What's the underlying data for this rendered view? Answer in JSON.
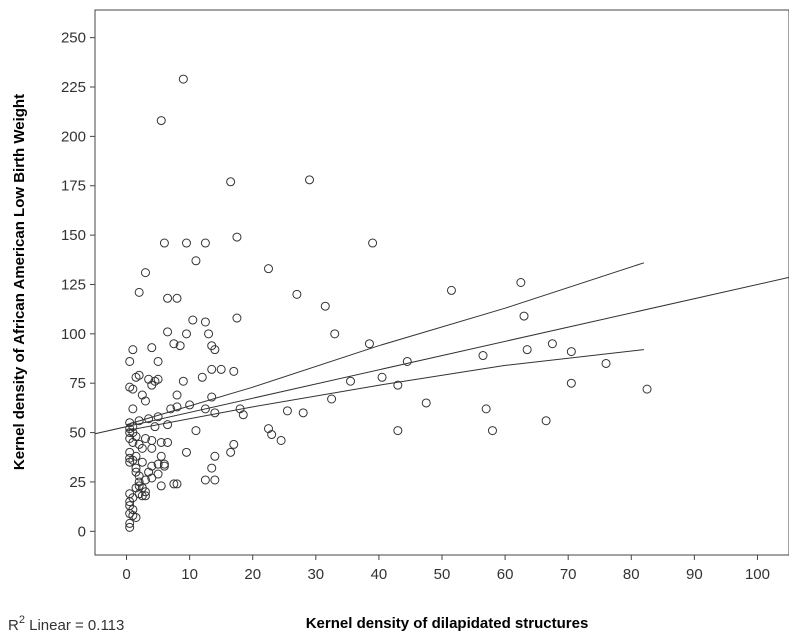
{
  "chart_data": {
    "type": "scatter",
    "xlabel": "Kernel density of dilapidated structures",
    "ylabel": "Kernel density of African American Low Birth Weight",
    "xlim": [
      -5,
      105
    ],
    "ylim": [
      -12,
      264
    ],
    "xticks": [
      0,
      10,
      20,
      30,
      40,
      50,
      60,
      70,
      80,
      90,
      100
    ],
    "yticks": [
      0,
      25,
      50,
      75,
      100,
      125,
      150,
      175,
      200,
      225,
      250
    ],
    "r2_prefix": "R",
    "r2_sup": "2",
    "r2_rest": " Linear = 0.113",
    "grid": false,
    "fit": {
      "intercept": 53,
      "slope": 0.72
    },
    "ci_upper": [
      [
        0,
        54
      ],
      [
        20,
        73
      ],
      [
        40,
        94
      ],
      [
        60,
        113
      ],
      [
        82,
        136
      ]
    ],
    "ci_lower": [
      [
        0,
        51
      ],
      [
        20,
        63
      ],
      [
        40,
        74
      ],
      [
        60,
        84
      ],
      [
        82,
        92
      ]
    ],
    "points": [
      [
        9,
        229
      ],
      [
        5.5,
        208
      ],
      [
        16.5,
        177
      ],
      [
        29,
        178
      ],
      [
        6,
        146
      ],
      [
        9.5,
        146
      ],
      [
        12.5,
        146
      ],
      [
        17.5,
        149
      ],
      [
        39,
        146
      ],
      [
        11,
        137
      ],
      [
        22.5,
        133
      ],
      [
        3,
        131
      ],
      [
        2,
        121
      ],
      [
        6.5,
        118
      ],
      [
        8,
        118
      ],
      [
        27,
        120
      ],
      [
        31.5,
        114
      ],
      [
        51.5,
        122
      ],
      [
        62.5,
        126
      ],
      [
        63,
        109
      ],
      [
        10.5,
        107
      ],
      [
        12.5,
        106
      ],
      [
        17.5,
        108
      ],
      [
        6.5,
        101
      ],
      [
        9.5,
        100
      ],
      [
        13,
        100
      ],
      [
        33,
        100
      ],
      [
        38.5,
        95
      ],
      [
        63.5,
        92
      ],
      [
        67.5,
        95
      ],
      [
        70.5,
        91
      ],
      [
        7.5,
        95
      ],
      [
        8.5,
        94
      ],
      [
        4,
        93
      ],
      [
        1,
        92
      ],
      [
        13.5,
        94
      ],
      [
        14,
        92
      ],
      [
        0.5,
        86
      ],
      [
        5,
        86
      ],
      [
        15,
        82
      ],
      [
        17,
        81
      ],
      [
        44.5,
        86
      ],
      [
        56.5,
        89
      ],
      [
        76,
        85
      ],
      [
        3.5,
        77
      ],
      [
        5,
        77
      ],
      [
        4.5,
        76
      ],
      [
        9,
        76
      ],
      [
        12,
        78
      ],
      [
        13.5,
        82
      ],
      [
        35.5,
        76
      ],
      [
        40.5,
        78
      ],
      [
        43,
        74
      ],
      [
        70.5,
        75
      ],
      [
        82.5,
        72
      ],
      [
        0.5,
        73
      ],
      [
        1,
        72
      ],
      [
        4,
        74
      ],
      [
        1.5,
        78
      ],
      [
        2,
        79
      ],
      [
        2.5,
        69
      ],
      [
        8,
        69
      ],
      [
        13.5,
        68
      ],
      [
        3,
        66
      ],
      [
        32.5,
        67
      ],
      [
        47.5,
        65
      ],
      [
        7,
        62
      ],
      [
        8,
        63
      ],
      [
        10,
        64
      ],
      [
        12.5,
        62
      ],
      [
        14,
        60
      ],
      [
        18,
        62
      ],
      [
        18.5,
        59
      ],
      [
        25.5,
        61
      ],
      [
        28,
        60
      ],
      [
        57,
        62
      ],
      [
        1,
        62
      ],
      [
        5,
        58
      ],
      [
        6.5,
        54
      ],
      [
        2,
        56
      ],
      [
        3.5,
        57
      ],
      [
        4.5,
        53
      ],
      [
        0.5,
        55
      ],
      [
        0.5,
        52
      ],
      [
        0.5,
        50
      ],
      [
        1,
        53
      ],
      [
        1,
        50
      ],
      [
        0.5,
        47
      ],
      [
        1,
        45
      ],
      [
        11,
        51
      ],
      [
        22.5,
        52
      ],
      [
        23,
        49
      ],
      [
        43,
        51
      ],
      [
        58,
        51
      ],
      [
        66.5,
        56
      ],
      [
        1.5,
        48
      ],
      [
        2,
        44
      ],
      [
        3,
        47
      ],
      [
        4,
        46
      ],
      [
        5.5,
        45
      ],
      [
        6.5,
        45
      ],
      [
        24.5,
        46
      ],
      [
        0.5,
        40
      ],
      [
        1.5,
        38
      ],
      [
        2.5,
        42
      ],
      [
        4,
        42
      ],
      [
        9.5,
        40
      ],
      [
        14,
        38
      ],
      [
        17,
        44
      ],
      [
        16.5,
        40
      ],
      [
        0.5,
        37
      ],
      [
        0.5,
        35
      ],
      [
        1,
        36
      ],
      [
        2.5,
        35
      ],
      [
        5,
        34
      ],
      [
        5.5,
        38
      ],
      [
        6,
        33
      ],
      [
        1.5,
        32
      ],
      [
        1.5,
        30
      ],
      [
        2,
        28
      ],
      [
        3.5,
        30
      ],
      [
        4,
        33
      ],
      [
        13.5,
        32
      ],
      [
        6,
        34
      ],
      [
        2,
        25
      ],
      [
        3,
        26
      ],
      [
        4,
        27
      ],
      [
        5,
        29
      ],
      [
        12.5,
        26
      ],
      [
        14,
        26
      ],
      [
        1.5,
        22
      ],
      [
        2,
        23
      ],
      [
        2.5,
        22
      ],
      [
        3,
        20
      ],
      [
        7.5,
        24
      ],
      [
        8,
        24
      ],
      [
        5.5,
        23
      ],
      [
        2,
        19
      ],
      [
        2.5,
        18
      ],
      [
        3,
        18
      ],
      [
        0.5,
        19
      ],
      [
        1,
        17
      ],
      [
        0.5,
        15
      ],
      [
        0.5,
        13
      ],
      [
        1,
        11
      ],
      [
        0.5,
        9
      ],
      [
        1,
        8
      ],
      [
        1.5,
        7
      ],
      [
        0.5,
        4
      ],
      [
        0.5,
        2
      ]
    ]
  }
}
